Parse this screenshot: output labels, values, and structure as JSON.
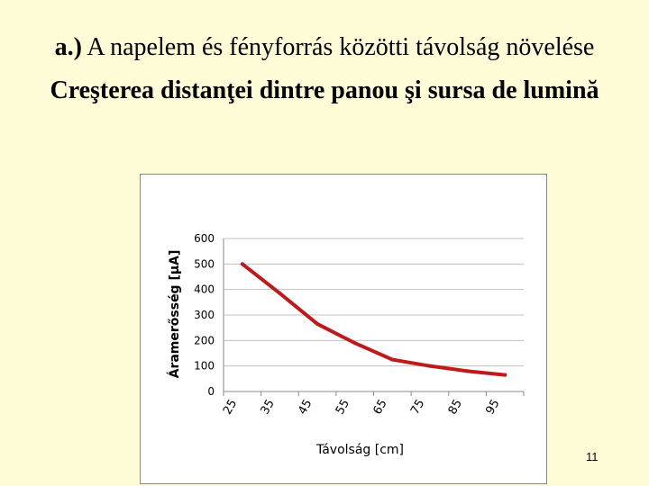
{
  "slide": {
    "title_prefix": "a.)",
    "title_hu": "A napelem és fényforrás közötti távolság növelése",
    "title_ro": "Creşterea distanţei dintre panou şi sursa de lumină",
    "number": "11"
  },
  "colors": {
    "background": "#fefcd6",
    "series_line": "#c0191a",
    "gridline": "#c0c0c0"
  },
  "chart_data": {
    "type": "line",
    "title": "",
    "xlabel": "Távolság [cm]",
    "ylabel": "Áramerősség [µA]",
    "categories": [
      "25",
      "35",
      "45",
      "55",
      "65",
      "75",
      "85",
      "95"
    ],
    "yticks": [
      "0",
      "100",
      "200",
      "300",
      "400",
      "500",
      "600"
    ],
    "ylim": [
      0,
      600
    ],
    "grid": true,
    "legend": "none",
    "series": [
      {
        "values": [
          500,
          385,
          265,
          190,
          125,
          100,
          80,
          65
        ]
      }
    ]
  }
}
